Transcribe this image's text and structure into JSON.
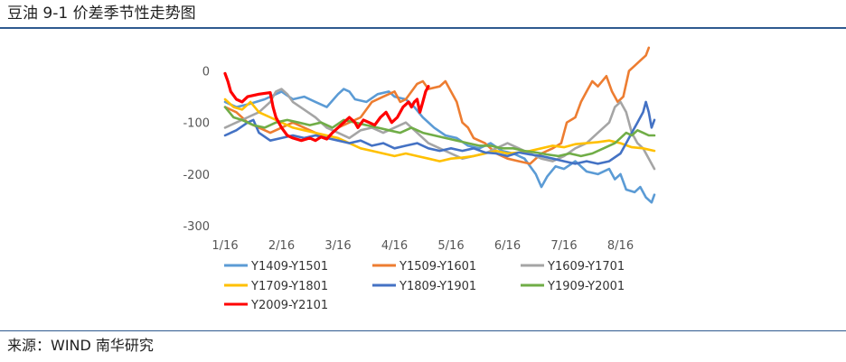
{
  "header": {
    "title": "豆油 9-1 价差季节性走势图"
  },
  "footer": {
    "source": "来源：WIND 南华研究"
  },
  "chart_data": {
    "type": "line",
    "title": "",
    "xlabel": "",
    "ylabel": "",
    "x_tick_labels": [
      "1/16",
      "2/16",
      "3/16",
      "4/16",
      "5/16",
      "6/16",
      "7/16",
      "8/16"
    ],
    "y_ticks": [
      0,
      -100,
      -200,
      -300
    ],
    "ylim": [
      -300,
      50
    ],
    "xlim": [
      0,
      7.6
    ],
    "grid": false,
    "legend_position": "bottom",
    "series": [
      {
        "name": "Y1409-Y1501",
        "color": "#5b9bd5",
        "points": [
          [
            0,
            -60
          ],
          [
            0.2,
            -70
          ],
          [
            0.4,
            -65
          ],
          [
            0.7,
            -55
          ],
          [
            0.9,
            -45
          ],
          [
            1,
            -40
          ],
          [
            1.2,
            -55
          ],
          [
            1.4,
            -50
          ],
          [
            1.6,
            -60
          ],
          [
            1.8,
            -70
          ],
          [
            2,
            -45
          ],
          [
            2.1,
            -35
          ],
          [
            2.2,
            -40
          ],
          [
            2.3,
            -55
          ],
          [
            2.5,
            -60
          ],
          [
            2.7,
            -45
          ],
          [
            2.9,
            -40
          ],
          [
            3,
            -50
          ],
          [
            3.2,
            -55
          ],
          [
            3.35,
            -70
          ],
          [
            3.5,
            -90
          ],
          [
            3.7,
            -110
          ],
          [
            3.9,
            -125
          ],
          [
            4.1,
            -130
          ],
          [
            4.3,
            -145
          ],
          [
            4.5,
            -150
          ],
          [
            4.7,
            -140
          ],
          [
            4.9,
            -155
          ],
          [
            5.1,
            -160
          ],
          [
            5.3,
            -170
          ],
          [
            5.5,
            -200
          ],
          [
            5.6,
            -225
          ],
          [
            5.7,
            -205
          ],
          [
            5.85,
            -185
          ],
          [
            6,
            -190
          ],
          [
            6.2,
            -175
          ],
          [
            6.4,
            -195
          ],
          [
            6.6,
            -200
          ],
          [
            6.8,
            -190
          ],
          [
            6.9,
            -210
          ],
          [
            7,
            -200
          ],
          [
            7.1,
            -230
          ],
          [
            7.25,
            -235
          ],
          [
            7.35,
            -225
          ],
          [
            7.45,
            -245
          ],
          [
            7.55,
            -255
          ],
          [
            7.6,
            -240
          ]
        ]
      },
      {
        "name": "Y1509-Y1601",
        "color": "#ed7d31",
        "points": [
          [
            0,
            -70
          ],
          [
            0.2,
            -80
          ],
          [
            0.4,
            -100
          ],
          [
            0.6,
            -110
          ],
          [
            0.8,
            -120
          ],
          [
            1,
            -110
          ],
          [
            1.2,
            -100
          ],
          [
            1.4,
            -110
          ],
          [
            1.6,
            -120
          ],
          [
            1.8,
            -130
          ],
          [
            2,
            -110
          ],
          [
            2.2,
            -100
          ],
          [
            2.4,
            -90
          ],
          [
            2.6,
            -60
          ],
          [
            2.8,
            -50
          ],
          [
            3,
            -40
          ],
          [
            3.1,
            -60
          ],
          [
            3.2,
            -55
          ],
          [
            3.3,
            -40
          ],
          [
            3.4,
            -25
          ],
          [
            3.5,
            -20
          ],
          [
            3.6,
            -35
          ],
          [
            3.8,
            -30
          ],
          [
            3.9,
            -20
          ],
          [
            4,
            -40
          ],
          [
            4.1,
            -60
          ],
          [
            4.2,
            -100
          ],
          [
            4.3,
            -110
          ],
          [
            4.4,
            -130
          ],
          [
            4.6,
            -140
          ],
          [
            4.8,
            -160
          ],
          [
            5,
            -170
          ],
          [
            5.2,
            -175
          ],
          [
            5.4,
            -180
          ],
          [
            5.6,
            -160
          ],
          [
            5.8,
            -150
          ],
          [
            5.95,
            -140
          ],
          [
            6.05,
            -100
          ],
          [
            6.2,
            -90
          ],
          [
            6.3,
            -60
          ],
          [
            6.4,
            -40
          ],
          [
            6.5,
            -20
          ],
          [
            6.6,
            -30
          ],
          [
            6.75,
            -10
          ],
          [
            6.85,
            -40
          ],
          [
            6.95,
            -60
          ],
          [
            7.05,
            -50
          ],
          [
            7.15,
            0
          ],
          [
            7.25,
            10
          ],
          [
            7.35,
            20
          ],
          [
            7.45,
            30
          ],
          [
            7.5,
            45
          ]
        ]
      },
      {
        "name": "Y1609-Y1701",
        "color": "#a5a5a5",
        "points": [
          [
            0,
            -110
          ],
          [
            0.2,
            -100
          ],
          [
            0.4,
            -90
          ],
          [
            0.6,
            -80
          ],
          [
            0.8,
            -60
          ],
          [
            0.9,
            -40
          ],
          [
            1,
            -35
          ],
          [
            1.1,
            -45
          ],
          [
            1.2,
            -60
          ],
          [
            1.4,
            -75
          ],
          [
            1.6,
            -90
          ],
          [
            1.8,
            -110
          ],
          [
            2,
            -120
          ],
          [
            2.2,
            -130
          ],
          [
            2.4,
            -115
          ],
          [
            2.6,
            -110
          ],
          [
            2.8,
            -120
          ],
          [
            3,
            -110
          ],
          [
            3.2,
            -100
          ],
          [
            3.4,
            -120
          ],
          [
            3.6,
            -140
          ],
          [
            3.8,
            -150
          ],
          [
            4,
            -160
          ],
          [
            4.2,
            -170
          ],
          [
            4.4,
            -165
          ],
          [
            4.6,
            -160
          ],
          [
            4.8,
            -150
          ],
          [
            5,
            -140
          ],
          [
            5.2,
            -150
          ],
          [
            5.4,
            -160
          ],
          [
            5.6,
            -170
          ],
          [
            5.8,
            -175
          ],
          [
            6,
            -165
          ],
          [
            6.2,
            -150
          ],
          [
            6.4,
            -140
          ],
          [
            6.6,
            -120
          ],
          [
            6.8,
            -100
          ],
          [
            6.9,
            -70
          ],
          [
            7,
            -60
          ],
          [
            7.1,
            -80
          ],
          [
            7.2,
            -120
          ],
          [
            7.3,
            -140
          ],
          [
            7.4,
            -150
          ],
          [
            7.5,
            -170
          ],
          [
            7.6,
            -190
          ]
        ]
      },
      {
        "name": "Y1709-Y1801",
        "color": "#ffc000",
        "points": [
          [
            0,
            -55
          ],
          [
            0.15,
            -70
          ],
          [
            0.3,
            -75
          ],
          [
            0.45,
            -60
          ],
          [
            0.6,
            -80
          ],
          [
            0.8,
            -90
          ],
          [
            1,
            -100
          ],
          [
            1.2,
            -110
          ],
          [
            1.4,
            -115
          ],
          [
            1.6,
            -120
          ],
          [
            1.8,
            -125
          ],
          [
            2,
            -130
          ],
          [
            2.2,
            -140
          ],
          [
            2.4,
            -150
          ],
          [
            2.6,
            -155
          ],
          [
            2.8,
            -160
          ],
          [
            3,
            -165
          ],
          [
            3.2,
            -160
          ],
          [
            3.4,
            -165
          ],
          [
            3.6,
            -170
          ],
          [
            3.8,
            -175
          ],
          [
            4,
            -170
          ],
          [
            4.2,
            -168
          ],
          [
            4.4,
            -165
          ],
          [
            4.6,
            -160
          ],
          [
            4.8,
            -155
          ],
          [
            5,
            -160
          ],
          [
            5.2,
            -158
          ],
          [
            5.4,
            -155
          ],
          [
            5.6,
            -150
          ],
          [
            5.8,
            -145
          ],
          [
            6,
            -148
          ],
          [
            6.2,
            -142
          ],
          [
            6.4,
            -140
          ],
          [
            6.6,
            -138
          ],
          [
            6.8,
            -135
          ],
          [
            7,
            -140
          ],
          [
            7.2,
            -148
          ],
          [
            7.4,
            -150
          ],
          [
            7.6,
            -155
          ]
        ]
      },
      {
        "name": "Y1809-Y1901",
        "color": "#4472c4",
        "points": [
          [
            0,
            -125
          ],
          [
            0.2,
            -115
          ],
          [
            0.4,
            -100
          ],
          [
            0.5,
            -95
          ],
          [
            0.6,
            -120
          ],
          [
            0.8,
            -135
          ],
          [
            1,
            -130
          ],
          [
            1.2,
            -125
          ],
          [
            1.4,
            -130
          ],
          [
            1.6,
            -125
          ],
          [
            1.8,
            -130
          ],
          [
            2,
            -135
          ],
          [
            2.2,
            -140
          ],
          [
            2.4,
            -135
          ],
          [
            2.6,
            -145
          ],
          [
            2.8,
            -140
          ],
          [
            3,
            -150
          ],
          [
            3.2,
            -145
          ],
          [
            3.4,
            -140
          ],
          [
            3.6,
            -150
          ],
          [
            3.8,
            -155
          ],
          [
            4,
            -150
          ],
          [
            4.2,
            -155
          ],
          [
            4.4,
            -150
          ],
          [
            4.6,
            -158
          ],
          [
            4.8,
            -160
          ],
          [
            5,
            -165
          ],
          [
            5.2,
            -158
          ],
          [
            5.4,
            -162
          ],
          [
            5.6,
            -165
          ],
          [
            5.8,
            -170
          ],
          [
            6,
            -175
          ],
          [
            6.2,
            -180
          ],
          [
            6.4,
            -175
          ],
          [
            6.6,
            -180
          ],
          [
            6.8,
            -175
          ],
          [
            7,
            -160
          ],
          [
            7.1,
            -140
          ],
          [
            7.2,
            -120
          ],
          [
            7.3,
            -100
          ],
          [
            7.4,
            -80
          ],
          [
            7.45,
            -60
          ],
          [
            7.5,
            -80
          ],
          [
            7.55,
            -110
          ],
          [
            7.6,
            -95
          ]
        ]
      },
      {
        "name": "Y1909-Y2001",
        "color": "#70ad47",
        "points": [
          [
            0,
            -70
          ],
          [
            0.15,
            -90
          ],
          [
            0.3,
            -95
          ],
          [
            0.5,
            -105
          ],
          [
            0.7,
            -110
          ],
          [
            0.9,
            -100
          ],
          [
            1.1,
            -95
          ],
          [
            1.3,
            -100
          ],
          [
            1.5,
            -105
          ],
          [
            1.7,
            -100
          ],
          [
            1.9,
            -110
          ],
          [
            2.1,
            -95
          ],
          [
            2.3,
            -100
          ],
          [
            2.5,
            -105
          ],
          [
            2.7,
            -110
          ],
          [
            2.9,
            -115
          ],
          [
            3.1,
            -120
          ],
          [
            3.3,
            -110
          ],
          [
            3.5,
            -120
          ],
          [
            3.7,
            -125
          ],
          [
            3.9,
            -130
          ],
          [
            4.1,
            -135
          ],
          [
            4.3,
            -140
          ],
          [
            4.5,
            -145
          ],
          [
            4.7,
            -145
          ],
          [
            4.9,
            -150
          ],
          [
            5.1,
            -150
          ],
          [
            5.3,
            -155
          ],
          [
            5.5,
            -158
          ],
          [
            5.7,
            -162
          ],
          [
            5.9,
            -165
          ],
          [
            6.1,
            -160
          ],
          [
            6.3,
            -165
          ],
          [
            6.5,
            -160
          ],
          [
            6.7,
            -150
          ],
          [
            6.9,
            -140
          ],
          [
            7,
            -130
          ],
          [
            7.1,
            -120
          ],
          [
            7.2,
            -125
          ],
          [
            7.3,
            -115
          ],
          [
            7.4,
            -120
          ],
          [
            7.5,
            -125
          ],
          [
            7.6,
            -125
          ]
        ]
      },
      {
        "name": "Y2009-Y2101",
        "color": "#ff0000",
        "points": [
          [
            0,
            -5
          ],
          [
            0.05,
            -20
          ],
          [
            0.1,
            -40
          ],
          [
            0.2,
            -55
          ],
          [
            0.3,
            -60
          ],
          [
            0.4,
            -50
          ],
          [
            0.6,
            -45
          ],
          [
            0.8,
            -42
          ],
          [
            0.85,
            -70
          ],
          [
            0.9,
            -90
          ],
          [
            1,
            -110
          ],
          [
            1.1,
            -125
          ],
          [
            1.2,
            -130
          ],
          [
            1.35,
            -135
          ],
          [
            1.5,
            -130
          ],
          [
            1.6,
            -135
          ],
          [
            1.7,
            -128
          ],
          [
            1.8,
            -132
          ],
          [
            1.9,
            -120
          ],
          [
            2,
            -110
          ],
          [
            2.1,
            -100
          ],
          [
            2.2,
            -90
          ],
          [
            2.3,
            -100
          ],
          [
            2.35,
            -110
          ],
          [
            2.45,
            -95
          ],
          [
            2.55,
            -100
          ],
          [
            2.65,
            -105
          ],
          [
            2.75,
            -90
          ],
          [
            2.85,
            -80
          ],
          [
            2.95,
            -100
          ],
          [
            3.05,
            -90
          ],
          [
            3.15,
            -70
          ],
          [
            3.25,
            -60
          ],
          [
            3.3,
            -70
          ],
          [
            3.35,
            -60
          ],
          [
            3.4,
            -55
          ],
          [
            3.45,
            -80
          ],
          [
            3.5,
            -60
          ],
          [
            3.55,
            -40
          ],
          [
            3.6,
            -30
          ]
        ]
      }
    ]
  }
}
